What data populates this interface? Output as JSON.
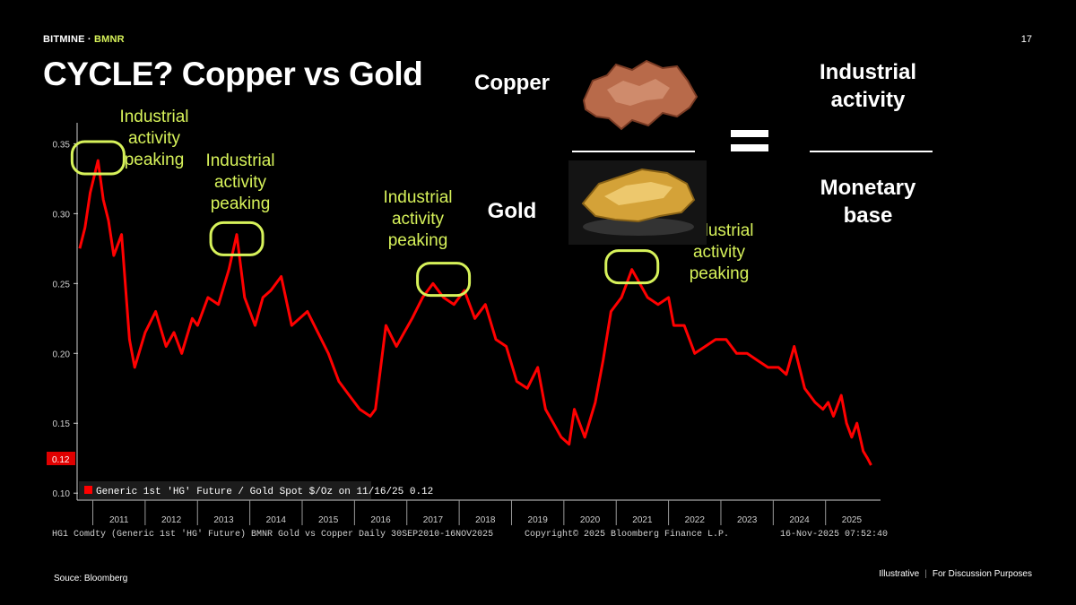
{
  "header": {
    "brand": "BITMINE",
    "ticker": "BMNR",
    "page_number": "17"
  },
  "title": "CYCLE? Copper vs Gold",
  "illustration": {
    "copper_label": "Copper",
    "gold_label": "Gold",
    "copper_image": "copper-nugget-photo",
    "gold_image": "gold-nugget-photo",
    "equation_numerator": "Industrial activity",
    "equation_denominator": "Monetary base"
  },
  "annotations": [
    "Industrial activity peaking",
    "Industrial activity peaking",
    "Industrial activity peaking",
    "Industrial activity peaking"
  ],
  "chart_data": {
    "type": "line",
    "series": [
      {
        "name": "Generic 1st 'HG' Future / Gold Spot $/Oz on 11/16/25 0.12",
        "color": "#ff0000",
        "x": [
          2010.75,
          2010.85,
          2010.95,
          2011.1,
          2011.2,
          2011.3,
          2011.4,
          2011.55,
          2011.7,
          2011.8,
          2012.0,
          2012.2,
          2012.4,
          2012.55,
          2012.7,
          2012.9,
          2013.0,
          2013.2,
          2013.4,
          2013.6,
          2013.75,
          2013.9,
          2014.1,
          2014.25,
          2014.4,
          2014.6,
          2014.8,
          2014.95,
          2015.1,
          2015.3,
          2015.5,
          2015.7,
          2015.9,
          2016.1,
          2016.3,
          2016.4,
          2016.6,
          2016.8,
          2016.95,
          2017.1,
          2017.3,
          2017.5,
          2017.7,
          2017.9,
          2018.1,
          2018.3,
          2018.5,
          2018.7,
          2018.9,
          2019.1,
          2019.3,
          2019.5,
          2019.65,
          2019.8,
          2019.95,
          2020.1,
          2020.2,
          2020.4,
          2020.6,
          2020.75,
          2020.9,
          2021.1,
          2021.3,
          2021.45,
          2021.6,
          2021.8,
          2022.0,
          2022.1,
          2022.3,
          2022.5,
          2022.7,
          2022.9,
          2023.1,
          2023.3,
          2023.5,
          2023.7,
          2023.9,
          2024.1,
          2024.25,
          2024.4,
          2024.6,
          2024.8,
          2024.95,
          2025.05,
          2025.15,
          2025.3,
          2025.4,
          2025.5,
          2025.6,
          2025.72,
          2025.8,
          2025.87
        ],
        "values": [
          0.275,
          0.29,
          0.315,
          0.338,
          0.31,
          0.295,
          0.27,
          0.285,
          0.21,
          0.19,
          0.215,
          0.23,
          0.205,
          0.215,
          0.2,
          0.225,
          0.22,
          0.24,
          0.235,
          0.26,
          0.285,
          0.24,
          0.22,
          0.24,
          0.245,
          0.255,
          0.22,
          0.225,
          0.23,
          0.215,
          0.2,
          0.18,
          0.17,
          0.16,
          0.155,
          0.16,
          0.22,
          0.205,
          0.215,
          0.225,
          0.24,
          0.25,
          0.24,
          0.235,
          0.245,
          0.225,
          0.235,
          0.21,
          0.205,
          0.18,
          0.175,
          0.19,
          0.16,
          0.15,
          0.14,
          0.135,
          0.16,
          0.14,
          0.165,
          0.195,
          0.23,
          0.24,
          0.26,
          0.25,
          0.24,
          0.235,
          0.24,
          0.22,
          0.22,
          0.2,
          0.205,
          0.21,
          0.21,
          0.2,
          0.2,
          0.195,
          0.19,
          0.19,
          0.185,
          0.205,
          0.175,
          0.165,
          0.16,
          0.165,
          0.155,
          0.17,
          0.15,
          0.14,
          0.15,
          0.13,
          0.125,
          0.12
        ]
      }
    ],
    "last_value_label": "0.12",
    "y_ticks": [
      "0.10",
      "0.15",
      "0.20",
      "0.25",
      "0.30",
      "0.35"
    ],
    "y_tick_values": [
      0.1,
      0.15,
      0.2,
      0.25,
      0.3,
      0.35
    ],
    "ylim": [
      0.095,
      0.365
    ],
    "x_ticks": [
      "2011",
      "2012",
      "2013",
      "2014",
      "2015",
      "2016",
      "2017",
      "2018",
      "2019",
      "2020",
      "2021",
      "2022",
      "2023",
      "2024",
      "2025"
    ],
    "xlim": [
      2010.7,
      2026.05
    ],
    "legend_position": "bottom-left",
    "grid": false,
    "bottom_left_caption": "HG1 Comdty (Generic 1st 'HG' Future) BMNR Gold vs Copper Daily 30SEP2010-16NOV2025",
    "bottom_center_caption": "Copyright© 2025 Bloomberg Finance L.P.",
    "bottom_right_caption": "16-Nov-2025 07:52:40",
    "highlight_color": "#d7f25a"
  },
  "footer": {
    "source": "Souce: Bloomberg",
    "note_left": "Illustrative",
    "note_right": "For Discussion Purposes"
  }
}
